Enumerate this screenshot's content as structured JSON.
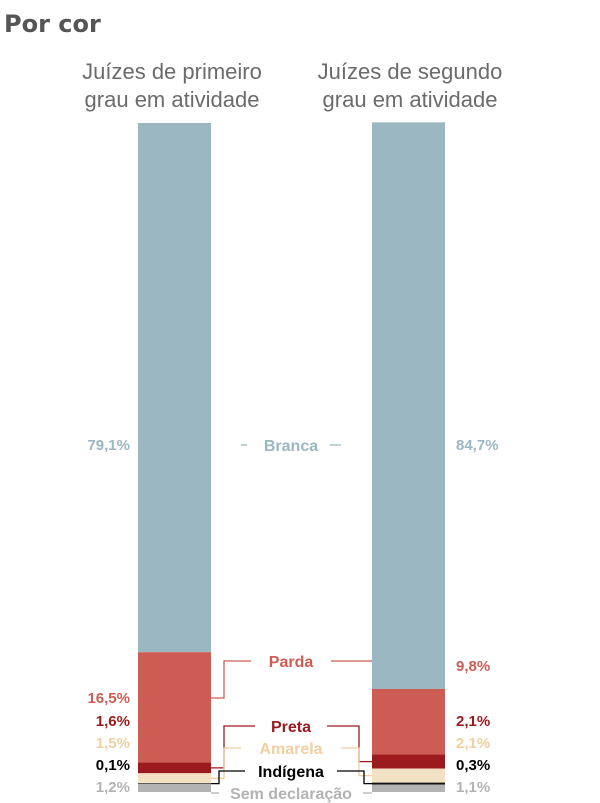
{
  "chart_data": {
    "type": "bar",
    "stacked": true,
    "normalized": true,
    "title": "Por cor",
    "categories": [
      "Juízes de primeiro grau em atividade",
      "Juízes de segundo grau em atividade"
    ],
    "category_lines": [
      [
        "Juízes de primeiro",
        "grau em atividade"
      ],
      [
        "Juízes de segundo",
        "grau em atividade"
      ]
    ],
    "series": [
      {
        "name": "Branca",
        "color": "#9bb7c2",
        "values": [
          79.1,
          84.7
        ],
        "labels": [
          "79,1%",
          "84,7%"
        ]
      },
      {
        "name": "Parda",
        "color": "#cd5d54",
        "values": [
          16.5,
          9.8
        ],
        "labels": [
          "16,5%",
          "9,8%"
        ]
      },
      {
        "name": "Preta",
        "color": "#9b1a1e",
        "values": [
          1.6,
          2.1
        ],
        "labels": [
          "1,6%",
          "2,1%"
        ]
      },
      {
        "name": "Amarela",
        "color": "#f2e1c3",
        "values": [
          1.5,
          2.1
        ],
        "labels": [
          "1,5%",
          "2,1%"
        ]
      },
      {
        "name": "Indígena",
        "color": "#111111",
        "values": [
          0.1,
          0.3
        ],
        "labels": [
          "0,1%",
          "0,3%"
        ]
      },
      {
        "name": "Sem declaração",
        "color": "#b3b3b3",
        "values": [
          1.2,
          1.1
        ],
        "labels": [
          "1,2%",
          "1,1%"
        ]
      }
    ],
    "label_colors": {
      "Branca": "#9bb7c2",
      "Parda": "#cd5d54",
      "Preta": "#9b1a1e",
      "Amarela": "#f0cfa0",
      "Indígena": "#000000",
      "Sem declaração": "#b3b3b3"
    },
    "ylim": [
      0,
      100
    ]
  }
}
